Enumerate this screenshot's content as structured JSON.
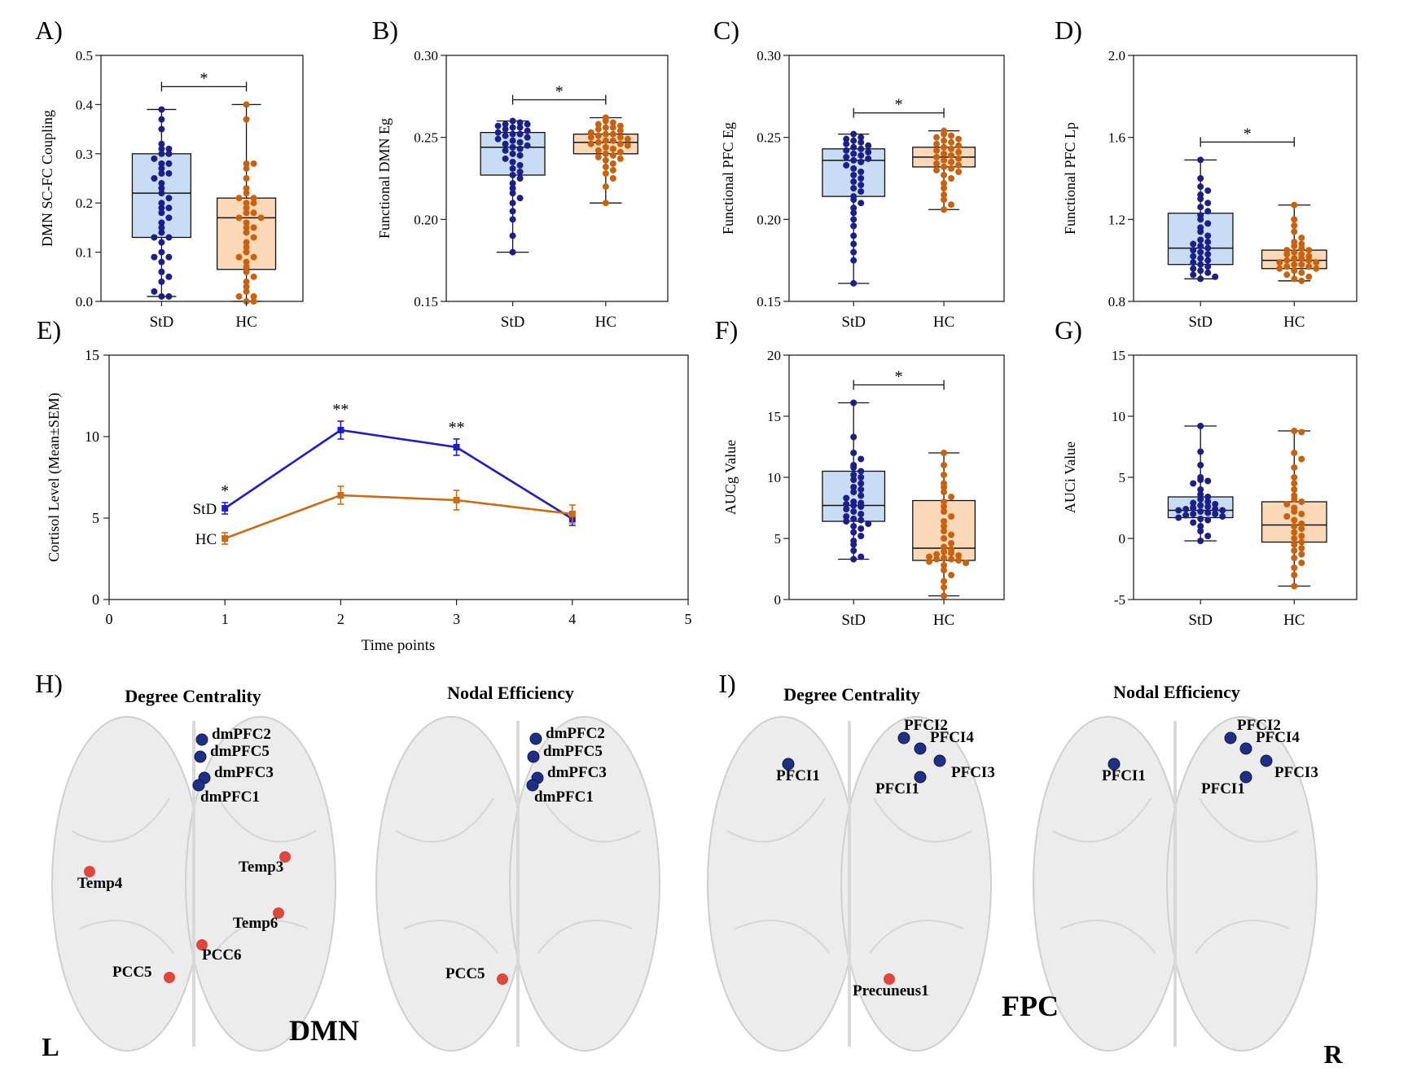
{
  "colors": {
    "std": "#1a1f8a",
    "std_fill": "#c9dcf5",
    "hc": "#c9620e",
    "hc_fill": "#fbd9b8",
    "line_std": "#1e1ec8",
    "line_hc": "#cc6a14",
    "node_blue": "#1f2f86",
    "node_red": "#e0473c"
  },
  "chart_data": [
    {
      "panel": "A)",
      "type": "box",
      "ylabel": "DMN SC-FC Coupling",
      "ylim": [
        0,
        0.5
      ],
      "yticks": [
        "0.0",
        "0.1",
        "0.2",
        "0.3",
        "0.4",
        "0.5"
      ],
      "categories": [
        "StD",
        "HC"
      ],
      "significance": "*",
      "series": [
        {
          "name": "StD",
          "whisker_low": 0.01,
          "q1": 0.13,
          "median": 0.22,
          "q3": 0.3,
          "whisker_high": 0.39,
          "points": [
            0.39,
            0.37,
            0.35,
            0.32,
            0.31,
            0.31,
            0.3,
            0.3,
            0.29,
            0.28,
            0.28,
            0.27,
            0.26,
            0.26,
            0.25,
            0.24,
            0.23,
            0.22,
            0.21,
            0.2,
            0.19,
            0.19,
            0.18,
            0.17,
            0.16,
            0.15,
            0.14,
            0.13,
            0.13,
            0.12,
            0.1,
            0.09,
            0.09,
            0.08,
            0.06,
            0.05,
            0.04,
            0.01,
            0.01,
            0.02
          ]
        },
        {
          "name": "HC",
          "whisker_low": 0.0,
          "q1": 0.065,
          "median": 0.17,
          "q3": 0.21,
          "whisker_high": 0.4,
          "points": [
            0.4,
            0.37,
            0.28,
            0.28,
            0.27,
            0.25,
            0.23,
            0.22,
            0.21,
            0.21,
            0.2,
            0.2,
            0.19,
            0.18,
            0.18,
            0.17,
            0.17,
            0.16,
            0.15,
            0.15,
            0.14,
            0.13,
            0.12,
            0.11,
            0.1,
            0.09,
            0.09,
            0.08,
            0.07,
            0.06,
            0.05,
            0.04,
            0.03,
            0.02,
            0.01,
            0.0,
            0.0,
            0.01
          ]
        }
      ]
    },
    {
      "panel": "B)",
      "type": "box",
      "ylabel": "Functional DMN Eg",
      "ylim": [
        0.15,
        0.3
      ],
      "yticks": [
        "0.15",
        "0.20",
        "0.25",
        "0.30"
      ],
      "categories": [
        "StD",
        "HC"
      ],
      "significance": "*",
      "series": [
        {
          "name": "StD",
          "whisker_low": 0.18,
          "q1": 0.227,
          "median": 0.244,
          "q3": 0.253,
          "whisker_high": 0.26,
          "points": [
            0.26,
            0.259,
            0.258,
            0.258,
            0.257,
            0.256,
            0.256,
            0.255,
            0.254,
            0.253,
            0.252,
            0.252,
            0.251,
            0.25,
            0.249,
            0.248,
            0.247,
            0.246,
            0.245,
            0.244,
            0.243,
            0.242,
            0.24,
            0.239,
            0.237,
            0.235,
            0.233,
            0.231,
            0.229,
            0.227,
            0.225,
            0.222,
            0.219,
            0.216,
            0.213,
            0.21,
            0.205,
            0.2,
            0.19,
            0.18
          ]
        },
        {
          "name": "HC",
          "whisker_low": 0.21,
          "q1": 0.24,
          "median": 0.247,
          "q3": 0.252,
          "whisker_high": 0.262,
          "points": [
            0.262,
            0.26,
            0.259,
            0.258,
            0.257,
            0.256,
            0.256,
            0.255,
            0.254,
            0.253,
            0.252,
            0.252,
            0.251,
            0.25,
            0.25,
            0.249,
            0.248,
            0.248,
            0.247,
            0.246,
            0.246,
            0.245,
            0.244,
            0.243,
            0.242,
            0.241,
            0.24,
            0.239,
            0.238,
            0.237,
            0.236,
            0.234,
            0.232,
            0.23,
            0.228,
            0.225,
            0.22,
            0.21
          ]
        }
      ]
    },
    {
      "panel": "C)",
      "type": "box",
      "ylabel": "Functional PFC Eg",
      "ylim": [
        0.15,
        0.3
      ],
      "yticks": [
        "0.15",
        "0.20",
        "0.25",
        "0.30"
      ],
      "categories": [
        "StD",
        "HC"
      ],
      "significance": "*",
      "series": [
        {
          "name": "StD",
          "whisker_low": 0.161,
          "q1": 0.214,
          "median": 0.236,
          "q3": 0.243,
          "whisker_high": 0.252,
          "points": [
            0.252,
            0.25,
            0.249,
            0.248,
            0.247,
            0.246,
            0.245,
            0.244,
            0.243,
            0.242,
            0.241,
            0.24,
            0.239,
            0.238,
            0.237,
            0.236,
            0.235,
            0.233,
            0.231,
            0.229,
            0.227,
            0.225,
            0.223,
            0.221,
            0.219,
            0.217,
            0.214,
            0.212,
            0.21,
            0.207,
            0.204,
            0.2,
            0.196,
            0.19,
            0.185,
            0.18,
            0.175,
            0.161
          ]
        },
        {
          "name": "HC",
          "whisker_low": 0.206,
          "q1": 0.232,
          "median": 0.238,
          "q3": 0.244,
          "whisker_high": 0.254,
          "points": [
            0.254,
            0.252,
            0.251,
            0.25,
            0.249,
            0.248,
            0.247,
            0.246,
            0.245,
            0.244,
            0.243,
            0.242,
            0.241,
            0.24,
            0.239,
            0.238,
            0.237,
            0.236,
            0.235,
            0.234,
            0.233,
            0.232,
            0.231,
            0.23,
            0.229,
            0.227,
            0.225,
            0.222,
            0.219,
            0.215,
            0.212,
            0.209,
            0.206
          ]
        }
      ]
    },
    {
      "panel": "D)",
      "type": "box",
      "ylabel": "Functional PFC Lp",
      "ylim": [
        0.8,
        2.0
      ],
      "yticks": [
        "0.8",
        "1.2",
        "1.6",
        "2.0"
      ],
      "categories": [
        "StD",
        "HC"
      ],
      "significance": "*",
      "series": [
        {
          "name": "StD",
          "whisker_low": 0.91,
          "q1": 0.98,
          "median": 1.06,
          "q3": 1.23,
          "whisker_high": 1.49,
          "points": [
            1.49,
            1.4,
            1.36,
            1.34,
            1.32,
            1.3,
            1.28,
            1.26,
            1.24,
            1.22,
            1.2,
            1.18,
            1.16,
            1.14,
            1.12,
            1.1,
            1.09,
            1.08,
            1.07,
            1.06,
            1.05,
            1.04,
            1.03,
            1.02,
            1.01,
            1.0,
            0.99,
            0.98,
            0.97,
            0.96,
            0.95,
            0.94,
            0.93,
            0.92,
            0.91
          ]
        },
        {
          "name": "HC",
          "whisker_low": 0.9,
          "q1": 0.96,
          "median": 1.0,
          "q3": 1.05,
          "whisker_high": 1.27,
          "points": [
            1.27,
            1.2,
            1.17,
            1.14,
            1.11,
            1.09,
            1.08,
            1.07,
            1.06,
            1.05,
            1.05,
            1.04,
            1.03,
            1.03,
            1.02,
            1.01,
            1.01,
            1.0,
            1.0,
            0.99,
            0.99,
            0.98,
            0.98,
            0.97,
            0.97,
            0.96,
            0.96,
            0.95,
            0.94,
            0.93,
            0.92,
            0.91,
            0.9
          ]
        }
      ]
    },
    {
      "panel": "E)",
      "type": "line",
      "xlabel": "Time points",
      "ylabel": "Cortisol Level (Mean±SEM)",
      "xlim": [
        0,
        5
      ],
      "ylim": [
        0,
        15
      ],
      "xticks": [
        "0",
        "1",
        "2",
        "3",
        "4",
        "5"
      ],
      "yticks": [
        "0",
        "5",
        "10",
        "15"
      ],
      "x": [
        1,
        2,
        3,
        4
      ],
      "series": [
        {
          "name": "StD",
          "values": [
            5.6,
            10.4,
            9.35,
            4.95
          ],
          "sem": [
            0.35,
            0.55,
            0.5,
            0.4
          ]
        },
        {
          "name": "HC",
          "values": [
            3.75,
            6.4,
            6.1,
            5.25
          ],
          "sem": [
            0.35,
            0.55,
            0.6,
            0.55
          ]
        }
      ],
      "annotations": [
        "*",
        "**",
        "**"
      ]
    },
    {
      "panel": "F)",
      "type": "box",
      "ylabel": "AUCg Value",
      "ylim": [
        0,
        20
      ],
      "yticks": [
        "0",
        "5",
        "10",
        "15",
        "20"
      ],
      "categories": [
        "StD",
        "HC"
      ],
      "significance": "*",
      "series": [
        {
          "name": "StD",
          "whisker_low": 3.3,
          "q1": 6.4,
          "median": 7.7,
          "q3": 10.5,
          "whisker_high": 16.1,
          "points": [
            16.1,
            13.3,
            12.0,
            11.5,
            11.0,
            10.8,
            10.5,
            10.2,
            10.0,
            9.8,
            9.5,
            9.2,
            9.0,
            8.8,
            8.5,
            8.3,
            8.0,
            7.9,
            7.8,
            7.7,
            7.6,
            7.4,
            7.2,
            7.0,
            6.8,
            6.6,
            6.5,
            6.4,
            6.2,
            6.0,
            5.8,
            5.5,
            5.2,
            4.8,
            4.5,
            4.0,
            3.5,
            3.3
          ]
        },
        {
          "name": "HC",
          "whisker_low": 0.3,
          "q1": 3.2,
          "median": 4.2,
          "q3": 8.1,
          "whisker_high": 12.0,
          "points": [
            12.0,
            11.0,
            10.2,
            9.5,
            9.2,
            8.8,
            8.4,
            8.0,
            7.6,
            7.2,
            6.8,
            6.4,
            6.0,
            5.6,
            5.3,
            5.0,
            4.6,
            4.3,
            4.1,
            3.9,
            3.8,
            3.7,
            3.6,
            3.5,
            3.4,
            3.3,
            3.3,
            3.2,
            3.1,
            3.0,
            2.8,
            2.4,
            2.0,
            1.5,
            1.0,
            0.3
          ]
        }
      ]
    },
    {
      "panel": "G)",
      "type": "box",
      "ylabel": "AUCi Value",
      "ylim": [
        -5,
        15
      ],
      "yticks": [
        "-5",
        "0",
        "5",
        "10",
        "15"
      ],
      "categories": [
        "StD",
        "HC"
      ],
      "significance": "",
      "series": [
        {
          "name": "StD",
          "whisker_low": -0.2,
          "q1": 1.7,
          "median": 2.3,
          "q3": 3.4,
          "whisker_high": 9.2,
          "points": [
            9.2,
            7.1,
            6.0,
            5.0,
            4.8,
            4.7,
            4.5,
            4.0,
            3.6,
            3.4,
            3.2,
            3.0,
            2.9,
            2.8,
            2.7,
            2.6,
            2.5,
            2.4,
            2.4,
            2.3,
            2.3,
            2.2,
            2.1,
            2.0,
            2.0,
            1.9,
            1.8,
            1.7,
            1.6,
            1.5,
            1.3,
            1.0,
            0.6,
            0.2,
            -0.2
          ]
        },
        {
          "name": "HC",
          "whisker_low": -3.9,
          "q1": -0.3,
          "median": 1.1,
          "q3": 3.0,
          "whisker_high": 8.8,
          "points": [
            8.8,
            8.7,
            7.0,
            6.5,
            5.8,
            5.0,
            4.5,
            4.0,
            3.5,
            3.2,
            3.0,
            2.8,
            2.5,
            2.2,
            2.0,
            1.8,
            1.5,
            1.2,
            1.0,
            0.8,
            0.5,
            0.2,
            0.0,
            -0.3,
            -0.5,
            -0.8,
            -1.0,
            -1.3,
            -1.6,
            -2.0,
            -2.4,
            -3.0,
            -3.9
          ]
        }
      ]
    }
  ],
  "brain": {
    "H_label": "H)",
    "I_label": "I)",
    "views": [
      {
        "title": "Degree Centrality",
        "nodes": [
          {
            "label": "dmPFC2",
            "color": "blue"
          },
          {
            "label": "dmPFC5",
            "color": "blue"
          },
          {
            "label": "dmPFC3",
            "color": "blue"
          },
          {
            "label": "dmPFC1",
            "color": "blue"
          },
          {
            "label": "Temp4",
            "color": "red"
          },
          {
            "label": "Temp3",
            "color": "red"
          },
          {
            "label": "Temp6",
            "color": "red"
          },
          {
            "label": "PCC6",
            "color": "red"
          },
          {
            "label": "PCC5",
            "color": "red"
          }
        ]
      },
      {
        "title": "Nodal Efficiency",
        "nodes": [
          {
            "label": "dmPFC2",
            "color": "blue"
          },
          {
            "label": "dmPFC5",
            "color": "blue"
          },
          {
            "label": "dmPFC3",
            "color": "blue"
          },
          {
            "label": "dmPFC1",
            "color": "blue"
          },
          {
            "label": "PCC5",
            "color": "red"
          }
        ]
      },
      {
        "title": "Degree Centrality",
        "nodes": [
          {
            "label": "PFCI2",
            "color": "blue"
          },
          {
            "label": "PFCI4",
            "color": "blue"
          },
          {
            "label": "PFCI3",
            "color": "blue"
          },
          {
            "label": "PFCI1",
            "color": "blue"
          },
          {
            "label": "PFCI1",
            "color": "blue"
          },
          {
            "label": "Precuneus1",
            "color": "red"
          }
        ]
      },
      {
        "title": "Nodal Efficiency",
        "nodes": [
          {
            "label": "PFCI2",
            "color": "blue"
          },
          {
            "label": "PFCI4",
            "color": "blue"
          },
          {
            "label": "PFCI3",
            "color": "blue"
          },
          {
            "label": "PFCI1",
            "color": "blue"
          },
          {
            "label": "PFCI1",
            "color": "blue"
          }
        ]
      }
    ],
    "dmn_label": "DMN",
    "fpc_label": "FPC",
    "left_label": "L",
    "right_label": "R"
  }
}
